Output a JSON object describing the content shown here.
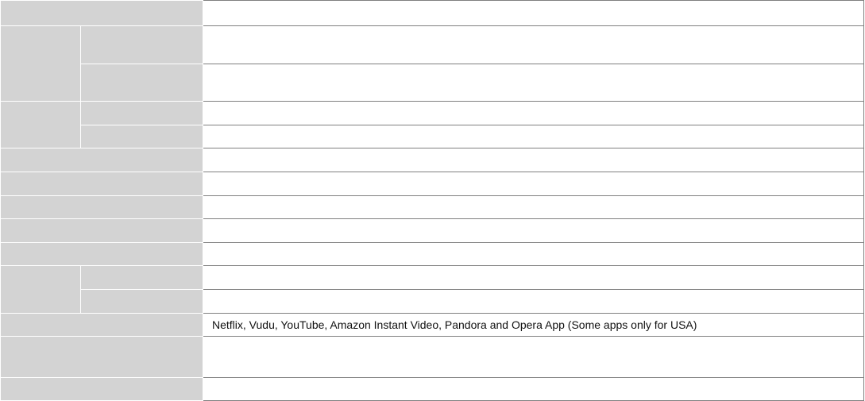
{
  "spec_table": {
    "apps_value": "Netflix, Vudu, YouTube, Amazon Instant Video, Pandora and Opera App (Some apps only for USA)"
  }
}
